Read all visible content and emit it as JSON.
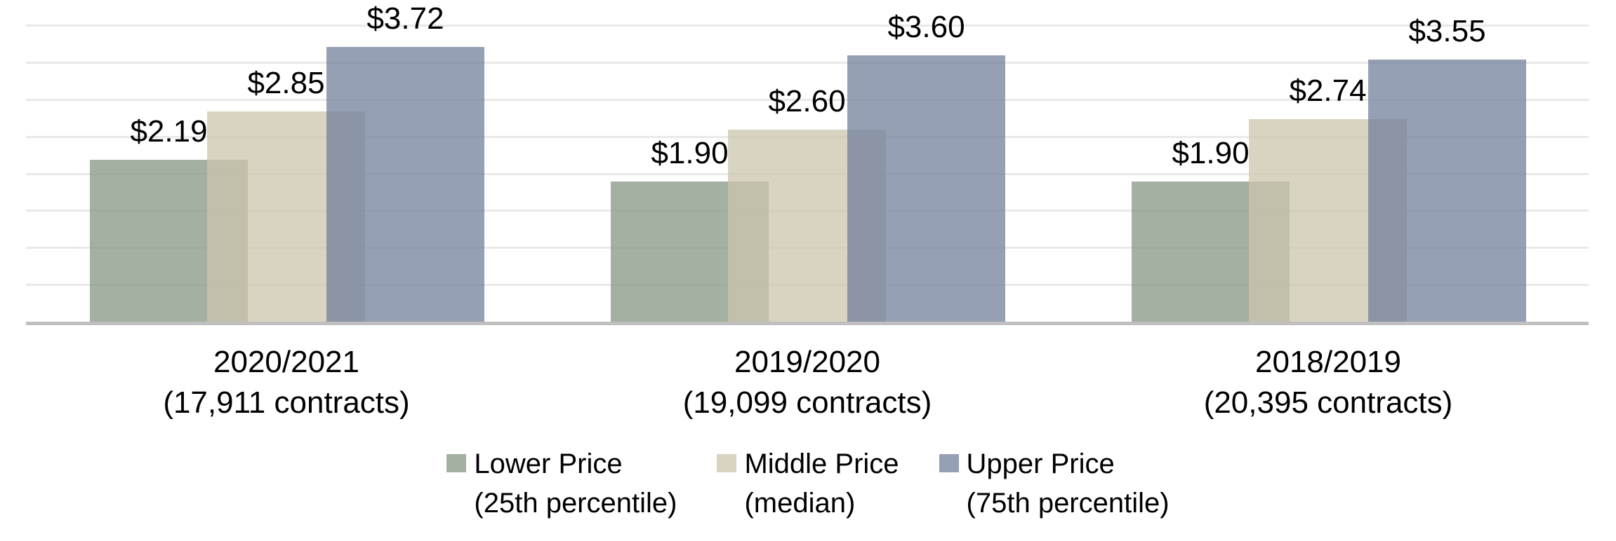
{
  "chart_data": {
    "type": "bar",
    "title": "",
    "xlabel": "",
    "ylabel": "",
    "categories": [
      {
        "label": "2020/2021",
        "sublabel": "(17,911 contracts)"
      },
      {
        "label": "2019/2020",
        "sublabel": "(19,099 contracts)"
      },
      {
        "label": "2018/2019",
        "sublabel": "(20,395 contracts)"
      }
    ],
    "series": [
      {
        "name": "Lower Price",
        "qualifier": "(25th percentile)",
        "color": "rgba(134,150,130,0.75)",
        "solid_hex": "#A4B0A1",
        "values": [
          2.19,
          1.9,
          1.9
        ],
        "value_labels": [
          "$2.19",
          "$1.90",
          "$1.90"
        ]
      },
      {
        "name": "Middle Price",
        "qualifier": "(median)",
        "color": "rgba(204,196,174,0.75)",
        "solid_hex": "#D9D3C2",
        "values": [
          2.85,
          2.6,
          2.74
        ],
        "value_labels": [
          "$2.85",
          "$2.60",
          "$2.74"
        ]
      },
      {
        "name": "Upper Price",
        "qualifier": "(75th percentile)",
        "color": "rgba(114,128,156,0.75)",
        "solid_hex": "#95A0B5",
        "values": [
          3.72,
          3.6,
          3.55
        ],
        "value_labels": [
          "$3.72",
          "$3.60",
          "$3.55"
        ]
      }
    ],
    "ylim": [
      0,
      4.0
    ],
    "gridline_step": 0.5,
    "grid": true,
    "y_axis_labels_visible": false,
    "legend_position": "bottom",
    "background": "#FFFFFF",
    "text_color": "#000000",
    "gridline_color": "#E9E9E9",
    "axis_line_color": "#BFBFBF"
  }
}
